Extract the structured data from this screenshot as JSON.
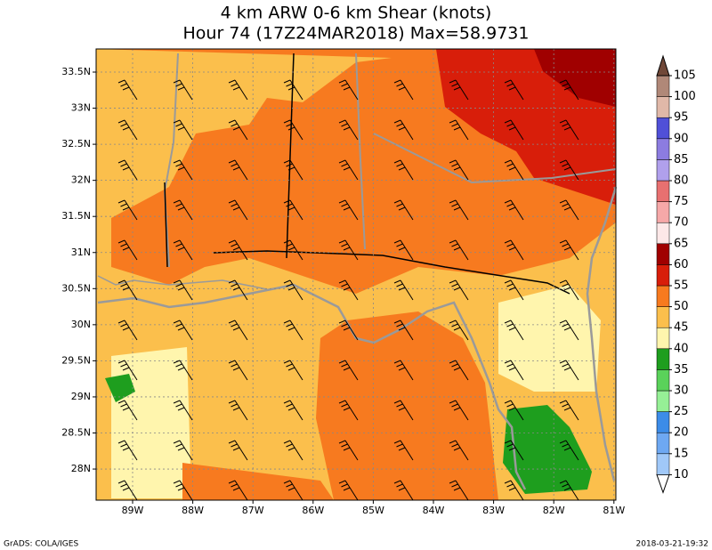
{
  "title": [
    "4 km ARW 0-6 km Shear (knots)",
    "Hour 74 (17Z24MAR2018) Max=58.9731"
  ],
  "lat_labels": [
    "33.5N",
    "33N",
    "32.5N",
    "32N",
    "31.5N",
    "31N",
    "30.5N",
    "30N",
    "29.5N",
    "29N",
    "28.5N",
    "28N"
  ],
  "lon_labels": [
    "89W",
    "88W",
    "87W",
    "86W",
    "85W",
    "84W",
    "83W",
    "82W",
    "81W"
  ],
  "colorbar": {
    "levels": [
      10,
      15,
      20,
      25,
      30,
      35,
      40,
      45,
      50,
      55,
      60,
      65,
      70,
      75,
      80,
      85,
      90,
      95,
      100,
      105
    ],
    "colors": [
      "#ffffff",
      "#a0c8f8",
      "#6ea8f2",
      "#3c8ce8",
      "#96f096",
      "#5ad25a",
      "#1e9e1e",
      "#fff5ad",
      "#fbbf4c",
      "#f77a1f",
      "#d81e0a",
      "#a00000",
      "#fde8e8",
      "#f6a8a8",
      "#e87070",
      "#b0a0ec",
      "#8c7ce0",
      "#5050d8",
      "#e0b8a8",
      "#b08878",
      "#704838"
    ]
  },
  "footer_left": "GrADS: COLA/IGES",
  "footer_right": "2018-03-21-19:32"
}
